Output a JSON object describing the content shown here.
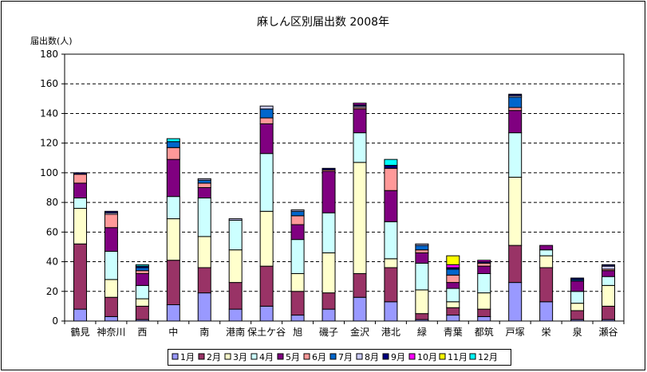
{
  "chart_data": {
    "type": "bar",
    "stacked": true,
    "title": "麻しん区別届出数  2008年",
    "ylabel": "届出数(人)",
    "xlabel": "",
    "ylim": [
      0,
      180
    ],
    "yticks": [
      0,
      20,
      40,
      60,
      80,
      100,
      120,
      140,
      160,
      180
    ],
    "grid": true,
    "legend_position": "bottom",
    "categories": [
      "鶴見",
      "神奈川",
      "西",
      "中",
      "南",
      "港南",
      "保土ケ谷",
      "旭",
      "磯子",
      "金沢",
      "港北",
      "緑",
      "青葉",
      "都筑",
      "戸塚",
      "栄",
      "泉",
      "瀬谷"
    ],
    "series": [
      {
        "name": "1月",
        "color": "#9999FF",
        "values": [
          8,
          3,
          1,
          11,
          19,
          8,
          10,
          4,
          8,
          16,
          13,
          1,
          4,
          3,
          26,
          13,
          1,
          1
        ]
      },
      {
        "name": "2月",
        "color": "#993366",
        "values": [
          44,
          13,
          9,
          30,
          17,
          18,
          27,
          16,
          11,
          16,
          23,
          4,
          5,
          5,
          25,
          23,
          6,
          9
        ]
      },
      {
        "name": "3月",
        "color": "#FFFFCC",
        "values": [
          24,
          12,
          5,
          28,
          21,
          22,
          37,
          12,
          27,
          75,
          6,
          16,
          4,
          11,
          46,
          8,
          5,
          14
        ]
      },
      {
        "name": "4月",
        "color": "#CCFFFF",
        "values": [
          7,
          19,
          9,
          15,
          26,
          20,
          39,
          23,
          27,
          20,
          25,
          18,
          9,
          13,
          30,
          4,
          8,
          6
        ]
      },
      {
        "name": "5月",
        "color": "#800080",
        "values": [
          10,
          16,
          8,
          25,
          7,
          0,
          20,
          10,
          28,
          16,
          21,
          7,
          4,
          5,
          15,
          3,
          7,
          4
        ]
      },
      {
        "name": "6月",
        "color": "#FF9999",
        "values": [
          6,
          9,
          2,
          8,
          3,
          0,
          4,
          6,
          1,
          1,
          15,
          2,
          5,
          2,
          2,
          0,
          0,
          1
        ]
      },
      {
        "name": "7月",
        "color": "#0066CC",
        "values": [
          0,
          0,
          2,
          4,
          2,
          0,
          6,
          3,
          0,
          0,
          0,
          3,
          4,
          0,
          7,
          0,
          1,
          0
        ]
      },
      {
        "name": "8月",
        "color": "#CCCCFF",
        "values": [
          0,
          1,
          0,
          0,
          1,
          1,
          2,
          1,
          0,
          1,
          0,
          1,
          0,
          0,
          1,
          0,
          0,
          2
        ]
      },
      {
        "name": "9月",
        "color": "#000080",
        "values": [
          1,
          1,
          1,
          0,
          0,
          0,
          0,
          0,
          1,
          1,
          2,
          0,
          1,
          1,
          1,
          0,
          1,
          1
        ]
      },
      {
        "name": "10月",
        "color": "#FF00FF",
        "values": [
          0,
          0,
          0,
          0,
          0,
          0,
          0,
          0,
          0,
          1,
          0,
          0,
          2,
          1,
          0,
          0,
          0,
          0
        ]
      },
      {
        "name": "11月",
        "color": "#FFFF00",
        "values": [
          0,
          0,
          0,
          0,
          0,
          0,
          0,
          0,
          0,
          0,
          0,
          0,
          6,
          0,
          0,
          0,
          0,
          0
        ]
      },
      {
        "name": "12月",
        "color": "#00FFFF",
        "values": [
          0,
          0,
          1,
          2,
          0,
          0,
          0,
          0,
          0,
          0,
          4,
          0,
          0,
          0,
          0,
          0,
          0,
          0
        ]
      }
    ]
  }
}
